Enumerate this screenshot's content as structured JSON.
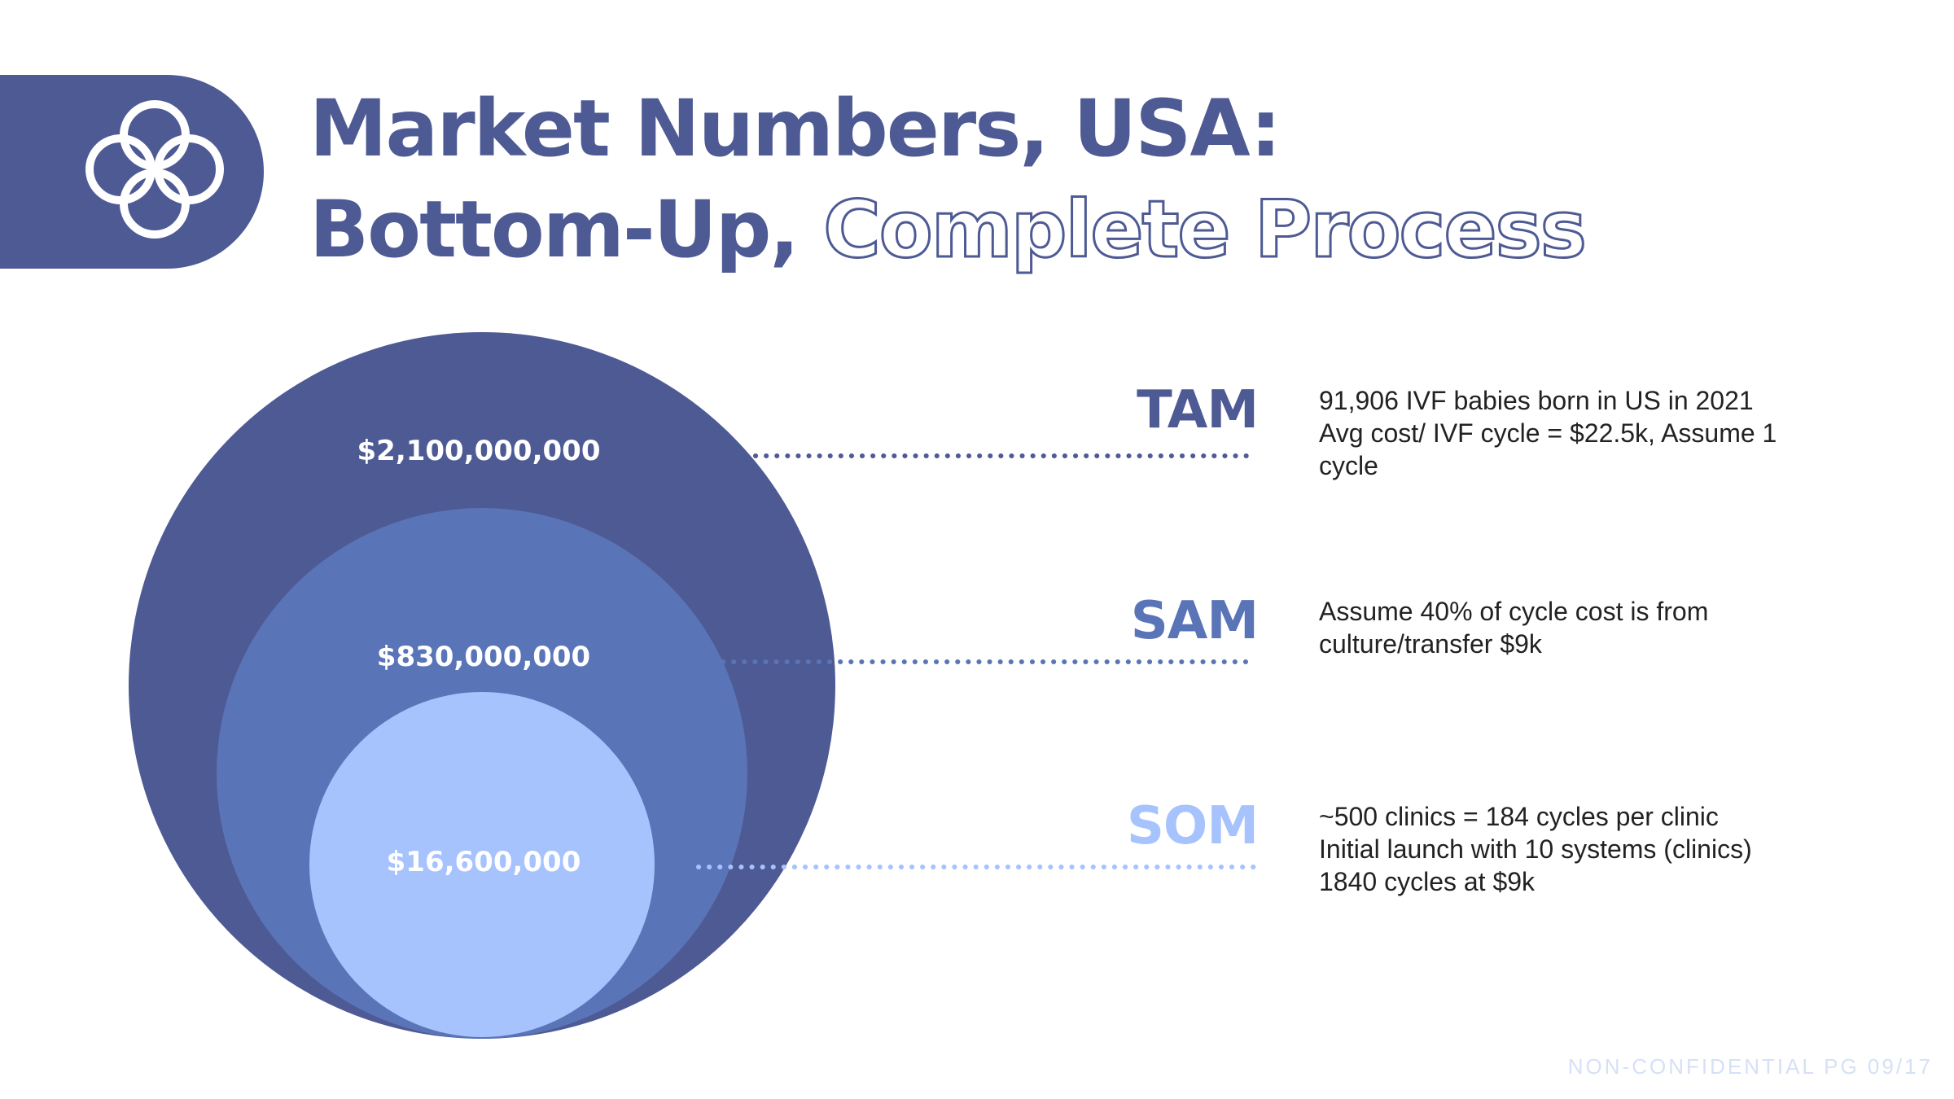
{
  "header": {
    "title_line1": "Market Numbers, USA:",
    "title_line2_solid": "Bottom-Up,",
    "title_line2_outline": "Complete Process",
    "logo_icon": "four-ring-knot-icon"
  },
  "colors": {
    "primary": "#4e5a94",
    "tam": "#4e5a94",
    "sam": "#5a74b8",
    "som": "#a6c3fd",
    "footer": "#d6e0f7"
  },
  "segments": [
    {
      "label": "TAM",
      "value": "$2,100,000,000",
      "lines": [
        "91,906 IVF babies born in US in 2021",
        "Avg cost/ IVF cycle = $22.5k, Assume 1",
        "cycle"
      ]
    },
    {
      "label": "SAM",
      "value": "$830,000,000",
      "lines": [
        "Assume 40% of cycle cost is from",
        "culture/transfer $9k"
      ]
    },
    {
      "label": "SOM",
      "value": "$16,600,000",
      "lines": [
        "~500 clinics = 184 cycles per clinic",
        "Initial launch with 10 systems (clinics)",
        "1840 cycles at $9k"
      ]
    }
  ],
  "footer": {
    "text": "NON-CONFIDENTIAL PG 09/17"
  }
}
